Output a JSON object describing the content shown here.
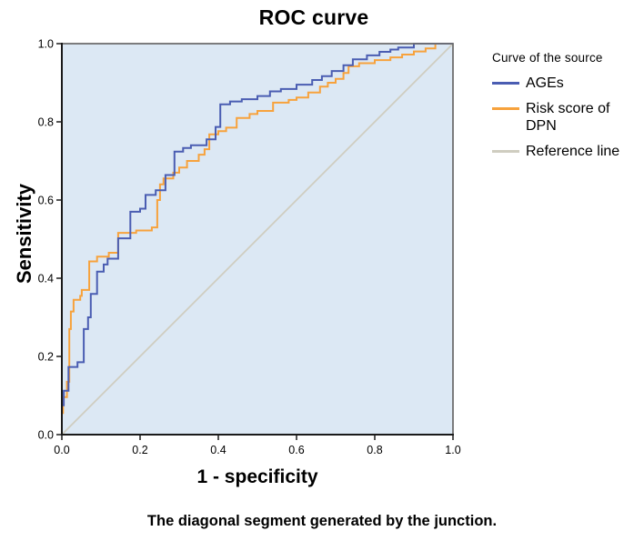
{
  "chart_data": {
    "type": "line",
    "title": "ROC curve",
    "xlabel": "1 - specificity",
    "ylabel": "Sensitivity",
    "caption": "The diagonal segment generated by the junction.",
    "xlim": [
      0.0,
      1.0
    ],
    "ylim": [
      0.0,
      1.0
    ],
    "xtick_values": [
      0.0,
      0.2,
      0.4,
      0.6,
      0.8,
      1.0
    ],
    "xtick_labels": [
      "0.0",
      "0.2",
      "0.4",
      "0.6",
      "0.8",
      "1.0"
    ],
    "ytick_values": [
      0.0,
      0.2,
      0.4,
      0.6,
      0.8,
      1.0
    ],
    "ytick_labels": [
      "0.0",
      "0.2",
      "0.4",
      "0.6",
      "0.8",
      "1.0"
    ],
    "grid": false,
    "plot_background": "#dce8f4",
    "frame_color": "#6f6f6f",
    "axis_color": "#1a1a1a",
    "legend": {
      "title": "Curve of the source",
      "position": "right"
    },
    "series": [
      {
        "name": "AGEs",
        "color": "#4a5db2",
        "style": "step",
        "points": [
          [
            0,
            0
          ],
          [
            0,
            0.075
          ],
          [
            0.005,
            0.075
          ],
          [
            0.005,
            0.112
          ],
          [
            0.017,
            0.112
          ],
          [
            0.017,
            0.173
          ],
          [
            0.04,
            0.173
          ],
          [
            0.04,
            0.185
          ],
          [
            0.056,
            0.185
          ],
          [
            0.056,
            0.27
          ],
          [
            0.067,
            0.27
          ],
          [
            0.067,
            0.3
          ],
          [
            0.074,
            0.3
          ],
          [
            0.074,
            0.36
          ],
          [
            0.09,
            0.36
          ],
          [
            0.09,
            0.417
          ],
          [
            0.107,
            0.417
          ],
          [
            0.107,
            0.435
          ],
          [
            0.117,
            0.435
          ],
          [
            0.117,
            0.45
          ],
          [
            0.144,
            0.45
          ],
          [
            0.144,
            0.502
          ],
          [
            0.175,
            0.502
          ],
          [
            0.175,
            0.57
          ],
          [
            0.2,
            0.57
          ],
          [
            0.2,
            0.578
          ],
          [
            0.214,
            0.578
          ],
          [
            0.214,
            0.613
          ],
          [
            0.24,
            0.613
          ],
          [
            0.24,
            0.625
          ],
          [
            0.265,
            0.625
          ],
          [
            0.265,
            0.664
          ],
          [
            0.288,
            0.664
          ],
          [
            0.288,
            0.724
          ],
          [
            0.31,
            0.724
          ],
          [
            0.31,
            0.733
          ],
          [
            0.33,
            0.733
          ],
          [
            0.33,
            0.74
          ],
          [
            0.37,
            0.74
          ],
          [
            0.37,
            0.755
          ],
          [
            0.393,
            0.755
          ],
          [
            0.393,
            0.787
          ],
          [
            0.405,
            0.787
          ],
          [
            0.405,
            0.845
          ],
          [
            0.43,
            0.845
          ],
          [
            0.43,
            0.852
          ],
          [
            0.46,
            0.852
          ],
          [
            0.46,
            0.858
          ],
          [
            0.5,
            0.858
          ],
          [
            0.5,
            0.866
          ],
          [
            0.532,
            0.866
          ],
          [
            0.532,
            0.878
          ],
          [
            0.56,
            0.878
          ],
          [
            0.56,
            0.884
          ],
          [
            0.6,
            0.884
          ],
          [
            0.6,
            0.895
          ],
          [
            0.64,
            0.895
          ],
          [
            0.64,
            0.907
          ],
          [
            0.665,
            0.907
          ],
          [
            0.665,
            0.917
          ],
          [
            0.69,
            0.917
          ],
          [
            0.69,
            0.93
          ],
          [
            0.72,
            0.93
          ],
          [
            0.72,
            0.945
          ],
          [
            0.744,
            0.945
          ],
          [
            0.744,
            0.96
          ],
          [
            0.78,
            0.96
          ],
          [
            0.78,
            0.97
          ],
          [
            0.812,
            0.97
          ],
          [
            0.812,
            0.979
          ],
          [
            0.84,
            0.979
          ],
          [
            0.84,
            0.985
          ],
          [
            0.86,
            0.985
          ],
          [
            0.86,
            0.99
          ],
          [
            0.9,
            0.99
          ],
          [
            0.9,
            1
          ],
          [
            1,
            1
          ]
        ]
      },
      {
        "name": "Risk score of DPN",
        "color": "#f7a23c",
        "style": "step",
        "points": [
          [
            0,
            0
          ],
          [
            0,
            0.055
          ],
          [
            0.003,
            0.055
          ],
          [
            0.003,
            0.096
          ],
          [
            0.013,
            0.096
          ],
          [
            0.013,
            0.135
          ],
          [
            0.019,
            0.135
          ],
          [
            0.019,
            0.27
          ],
          [
            0.023,
            0.27
          ],
          [
            0.023,
            0.315
          ],
          [
            0.03,
            0.315
          ],
          [
            0.03,
            0.345
          ],
          [
            0.047,
            0.345
          ],
          [
            0.047,
            0.355
          ],
          [
            0.051,
            0.355
          ],
          [
            0.051,
            0.37
          ],
          [
            0.07,
            0.37
          ],
          [
            0.07,
            0.443
          ],
          [
            0.09,
            0.443
          ],
          [
            0.09,
            0.455
          ],
          [
            0.12,
            0.455
          ],
          [
            0.12,
            0.465
          ],
          [
            0.144,
            0.465
          ],
          [
            0.144,
            0.516
          ],
          [
            0.19,
            0.516
          ],
          [
            0.19,
            0.522
          ],
          [
            0.23,
            0.522
          ],
          [
            0.23,
            0.53
          ],
          [
            0.244,
            0.53
          ],
          [
            0.244,
            0.6
          ],
          [
            0.251,
            0.6
          ],
          [
            0.251,
            0.64
          ],
          [
            0.26,
            0.64
          ],
          [
            0.26,
            0.655
          ],
          [
            0.285,
            0.655
          ],
          [
            0.285,
            0.67
          ],
          [
            0.3,
            0.67
          ],
          [
            0.3,
            0.683
          ],
          [
            0.32,
            0.683
          ],
          [
            0.32,
            0.7
          ],
          [
            0.35,
            0.7
          ],
          [
            0.35,
            0.716
          ],
          [
            0.365,
            0.716
          ],
          [
            0.365,
            0.73
          ],
          [
            0.377,
            0.73
          ],
          [
            0.377,
            0.768
          ],
          [
            0.4,
            0.768
          ],
          [
            0.4,
            0.776
          ],
          [
            0.42,
            0.776
          ],
          [
            0.42,
            0.785
          ],
          [
            0.447,
            0.785
          ],
          [
            0.447,
            0.81
          ],
          [
            0.48,
            0.81
          ],
          [
            0.48,
            0.82
          ],
          [
            0.5,
            0.82
          ],
          [
            0.5,
            0.828
          ],
          [
            0.54,
            0.828
          ],
          [
            0.54,
            0.849
          ],
          [
            0.58,
            0.849
          ],
          [
            0.58,
            0.856
          ],
          [
            0.6,
            0.856
          ],
          [
            0.6,
            0.862
          ],
          [
            0.63,
            0.862
          ],
          [
            0.63,
            0.875
          ],
          [
            0.66,
            0.875
          ],
          [
            0.66,
            0.89
          ],
          [
            0.68,
            0.89
          ],
          [
            0.68,
            0.9
          ],
          [
            0.7,
            0.9
          ],
          [
            0.7,
            0.91
          ],
          [
            0.72,
            0.91
          ],
          [
            0.72,
            0.925
          ],
          [
            0.733,
            0.925
          ],
          [
            0.733,
            0.942
          ],
          [
            0.76,
            0.942
          ],
          [
            0.76,
            0.95
          ],
          [
            0.8,
            0.95
          ],
          [
            0.8,
            0.958
          ],
          [
            0.84,
            0.958
          ],
          [
            0.84,
            0.965
          ],
          [
            0.87,
            0.965
          ],
          [
            0.87,
            0.972
          ],
          [
            0.9,
            0.972
          ],
          [
            0.9,
            0.98
          ],
          [
            0.93,
            0.98
          ],
          [
            0.93,
            0.988
          ],
          [
            0.955,
            0.988
          ],
          [
            0.955,
            1
          ],
          [
            1,
            1
          ]
        ]
      },
      {
        "name": "Reference line",
        "color": "#cfcdc0",
        "style": "straight",
        "points": [
          [
            0,
            0
          ],
          [
            1,
            1
          ]
        ]
      }
    ]
  }
}
